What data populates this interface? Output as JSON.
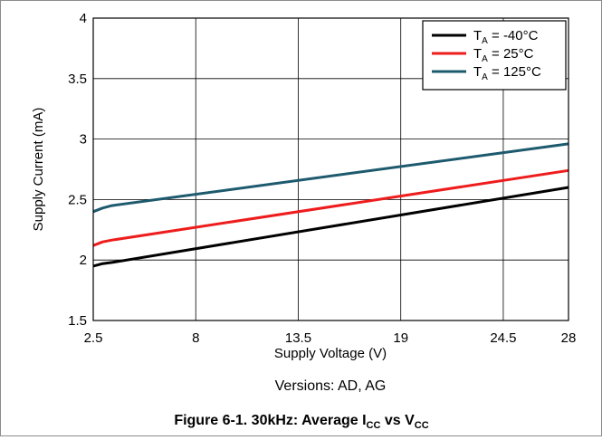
{
  "chart_data": {
    "type": "line",
    "xlabel": "Supply Voltage (V)",
    "ylabel": "Supply Current (mA)",
    "xlim": [
      2.5,
      28
    ],
    "ylim": [
      1.5,
      4
    ],
    "x_ticks": [
      "2.5",
      "8",
      "13.5",
      "19",
      "24.5",
      "28"
    ],
    "x_tick_values": [
      2.5,
      8,
      13.5,
      19,
      24.5,
      28
    ],
    "y_ticks": [
      "1.5",
      "2",
      "2.5",
      "3",
      "3.5",
      "4"
    ],
    "y_tick_values": [
      1.5,
      2,
      2.5,
      3,
      3.5,
      4
    ],
    "grid": true,
    "legend_position": "top-right",
    "series": [
      {
        "name_main": "T",
        "name_sub": "A",
        "name_rest": " = -40°C",
        "color": "#000000",
        "x": [
          2.5,
          3.0,
          3.5,
          28
        ],
        "y": [
          1.95,
          1.97,
          1.98,
          2.6
        ]
      },
      {
        "name_main": "T",
        "name_sub": "A",
        "name_rest": " = 25°C",
        "color": "#ee1c1c",
        "x": [
          2.5,
          3.0,
          3.5,
          28
        ],
        "y": [
          2.12,
          2.15,
          2.165,
          2.74
        ]
      },
      {
        "name_main": "T",
        "name_sub": "A",
        "name_rest": " = 125°C",
        "color": "#1d5a6e",
        "x": [
          2.5,
          3.0,
          3.5,
          28
        ],
        "y": [
          2.4,
          2.43,
          2.45,
          2.96
        ]
      }
    ]
  },
  "subtitle": "Versions: AD, AG",
  "caption": {
    "prefix": "Figure 6-1. 30kHz: Average I",
    "sub1": "CC",
    "mid": " vs V",
    "sub2": "CC"
  }
}
